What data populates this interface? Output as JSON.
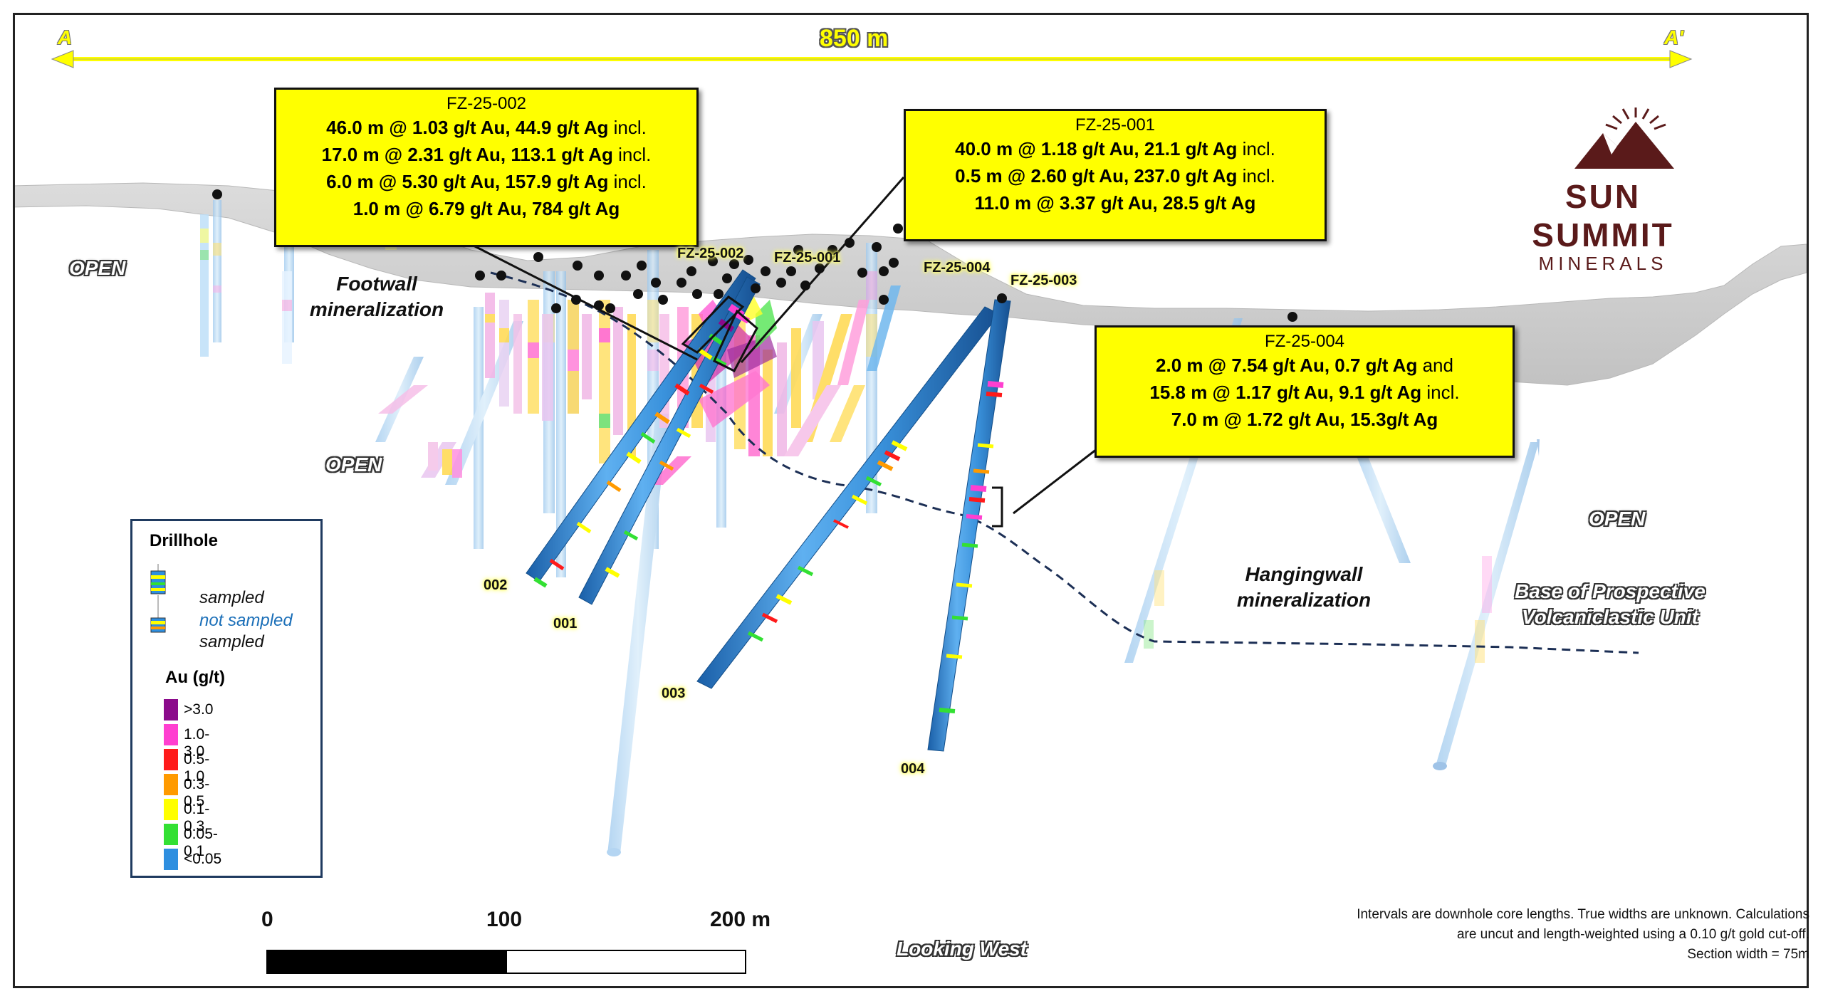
{
  "section_scale": {
    "label": "850 m",
    "left_end": "A",
    "right_end": "A'"
  },
  "logo": {
    "line1": "SUN SUMMIT",
    "line2": "MINERALS",
    "color": "#5a1a1a"
  },
  "callouts": [
    {
      "title": "FZ-25-002",
      "lines": [
        {
          "text": "46.0 m @ 1.03 g/t Au, 44.9 g/t Ag",
          "suffix": " incl."
        },
        {
          "text": "17.0 m @ 2.31 g/t Au, 113.1 g/t Ag",
          "suffix": " incl."
        },
        {
          "text": "6.0 m @ 5.30 g/t Au, 157.9 g/t Ag",
          "suffix": " incl."
        },
        {
          "text": "1.0 m @ 6.79 g/t Au, 784 g/t Ag",
          "suffix": ""
        }
      ]
    },
    {
      "title": "FZ-25-001",
      "lines": [
        {
          "text": "40.0 m @ 1.18 g/t Au, 21.1 g/t Ag",
          "suffix": " incl."
        },
        {
          "text": "0.5 m @ 2.60 g/t Au, 237.0 g/t Ag",
          "suffix": " incl."
        },
        {
          "text": "11.0 m @ 3.37 g/t Au, 28.5 g/t Ag",
          "suffix": ""
        }
      ]
    },
    {
      "title": "FZ-25-004",
      "lines": [
        {
          "text": "2.0 m @ 7.54 g/t Au, 0.7 g/t Ag",
          "suffix": " and"
        },
        {
          "text": "15.8 m @ 1.17 g/t Au, 9.1 g/t Ag",
          "suffix": " incl."
        },
        {
          "text": "7.0 m @ 1.72 g/t Au, 15.3g/t Ag",
          "suffix": ""
        }
      ]
    }
  ],
  "labels": {
    "open_left_top": "OPEN",
    "open_left_mid": "OPEN",
    "open_right": "OPEN",
    "footwall": [
      "Footwall",
      "mineralization"
    ],
    "hangingwall": [
      "Hangingwall",
      "mineralization"
    ],
    "base_unit": [
      "Base of Prospective",
      "Volcaniclastic Unit"
    ],
    "looking": "Looking West"
  },
  "hole_labels": {
    "collar_002": "FZ-25-002",
    "collar_001": "FZ-25-001",
    "collar_004": "FZ-25-004",
    "collar_003": "FZ-25-003",
    "end_002": "002",
    "end_001": "001",
    "end_003": "003",
    "end_004": "004"
  },
  "legend": {
    "title": "Drillhole",
    "sampled_1": "sampled",
    "not_sampled": "not sampled",
    "sampled_2": "sampled",
    "au_title": "Au (g/t)",
    "grades": [
      {
        "label": ">3.0",
        "color": "#8b0a8b"
      },
      {
        "label": "1.0-3.0",
        "color": "#ff3fd0"
      },
      {
        "label": "0.5-1.0",
        "color": "#ff1a1a"
      },
      {
        "label": "0.3-0.5",
        "color": "#ff9a00"
      },
      {
        "label": "0.1-0.3",
        "color": "#ffff00"
      },
      {
        "label": "0.05-0.1",
        "color": "#33e033"
      },
      {
        "label": "<0.05",
        "color": "#2e8fe0"
      }
    ]
  },
  "scale_bar": {
    "labels": [
      "0",
      "100",
      "200 m"
    ]
  },
  "notes": [
    "Intervals are downhole core lengths. True widths are unknown. Calculations",
    "are uncut and length-weighted using a 0.10 g/t gold cut-off.",
    "Section width = 75m"
  ]
}
